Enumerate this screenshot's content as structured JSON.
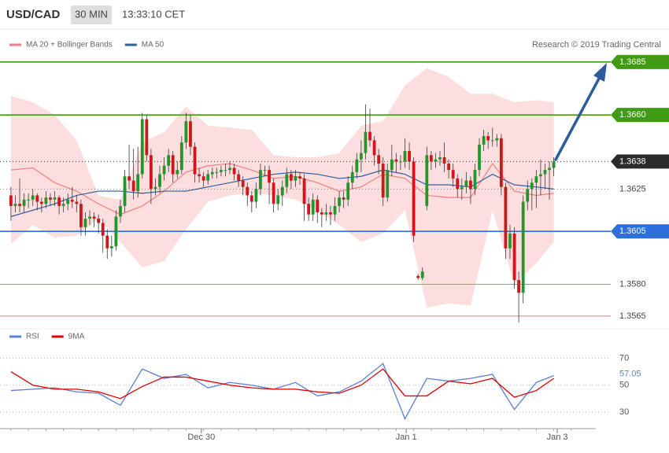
{
  "chart_data": [
    {
      "type": "candlestick",
      "title": "USD/CAD",
      "interval": "30 MIN",
      "time": "13:33:10 CET",
      "credit": "Research © 2019 Trading Central",
      "up_color": "#23962b",
      "down_color": "#d0161b",
      "xlim": [
        -2.5,
        133.6
      ],
      "ylim": [
        1.3562,
        1.3692
      ],
      "ohlc": [
        [
          1.3622,
          1.3626,
          1.361,
          1.3617
        ],
        [
          1.3617,
          1.3622,
          1.3614,
          1.3618
        ],
        [
          1.3618,
          1.363,
          1.3614,
          1.3617
        ],
        [
          1.3617,
          1.3623,
          1.3614,
          1.362
        ],
        [
          1.362,
          1.3623,
          1.3616,
          1.362
        ],
        [
          1.362,
          1.3625,
          1.3617,
          1.3622
        ],
        [
          1.3622,
          1.3623,
          1.3615,
          1.3619
        ],
        [
          1.3619,
          1.3621,
          1.3614,
          1.3618
        ],
        [
          1.3618,
          1.3624,
          1.3616,
          1.3621
        ],
        [
          1.3621,
          1.3623,
          1.3617,
          1.362
        ],
        [
          1.362,
          1.3624,
          1.3617,
          1.3621
        ],
        [
          1.3621,
          1.3622,
          1.3613,
          1.3617
        ],
        [
          1.3617,
          1.3621,
          1.3614,
          1.3618
        ],
        [
          1.3618,
          1.3623,
          1.3615,
          1.362
        ],
        [
          1.362,
          1.3626,
          1.3616,
          1.3619
        ],
        [
          1.3619,
          1.3622,
          1.3614,
          1.3618
        ],
        [
          1.3618,
          1.362,
          1.3603,
          1.3607
        ],
        [
          1.3607,
          1.3614,
          1.3603,
          1.3611
        ],
        [
          1.3611,
          1.3615,
          1.3608,
          1.3612
        ],
        [
          1.3612,
          1.3614,
          1.3607,
          1.3611
        ],
        [
          1.3611,
          1.3613,
          1.3604,
          1.3609
        ],
        [
          1.3609,
          1.3611,
          1.3595,
          1.3603
        ],
        [
          1.3603,
          1.3606,
          1.3592,
          1.3597
        ],
        [
          1.3597,
          1.3603,
          1.3593,
          1.3598
        ],
        [
          1.3598,
          1.3615,
          1.3596,
          1.3612
        ],
        [
          1.3612,
          1.362,
          1.3609,
          1.3617
        ],
        [
          1.3617,
          1.3634,
          1.3614,
          1.3631
        ],
        [
          1.3631,
          1.3646,
          1.3625,
          1.3629
        ],
        [
          1.3629,
          1.3644,
          1.362,
          1.3624
        ],
        [
          1.3624,
          1.3645,
          1.3621,
          1.3632
        ],
        [
          1.3632,
          1.3661,
          1.363,
          1.3658
        ],
        [
          1.3658,
          1.366,
          1.3638,
          1.3641
        ],
        [
          1.3641,
          1.3644,
          1.3618,
          1.3625
        ],
        [
          1.3625,
          1.363,
          1.3622,
          1.3626
        ],
        [
          1.3626,
          1.3636,
          1.3623,
          1.3632
        ],
        [
          1.3632,
          1.364,
          1.3629,
          1.3636
        ],
        [
          1.3636,
          1.3644,
          1.3633,
          1.3641
        ],
        [
          1.3641,
          1.3643,
          1.3628,
          1.3632
        ],
        [
          1.3632,
          1.3638,
          1.363,
          1.3634
        ],
        [
          1.3634,
          1.365,
          1.3632,
          1.3647
        ],
        [
          1.3647,
          1.3661,
          1.3644,
          1.3657
        ],
        [
          1.3657,
          1.366,
          1.3641,
          1.3645
        ],
        [
          1.3645,
          1.3647,
          1.3628,
          1.3632
        ],
        [
          1.3632,
          1.3635,
          1.3628,
          1.3631
        ],
        [
          1.3631,
          1.3633,
          1.3626,
          1.3629
        ],
        [
          1.3629,
          1.3634,
          1.3627,
          1.3632
        ],
        [
          1.3632,
          1.3635,
          1.363,
          1.3633
        ],
        [
          1.3633,
          1.3635,
          1.363,
          1.3633
        ],
        [
          1.3633,
          1.3636,
          1.3631,
          1.3634
        ],
        [
          1.3634,
          1.3637,
          1.3631,
          1.3634
        ],
        [
          1.3634,
          1.3638,
          1.3632,
          1.3635
        ],
        [
          1.3635,
          1.3637,
          1.3629,
          1.3632
        ],
        [
          1.3632,
          1.3634,
          1.3626,
          1.3629
        ],
        [
          1.3629,
          1.3631,
          1.3622,
          1.3626
        ],
        [
          1.3626,
          1.3628,
          1.3617,
          1.3622
        ],
        [
          1.3622,
          1.3624,
          1.3614,
          1.3619
        ],
        [
          1.3619,
          1.3628,
          1.3616,
          1.3625
        ],
        [
          1.3625,
          1.3637,
          1.3622,
          1.3634
        ],
        [
          1.3634,
          1.3636,
          1.3631,
          1.3634
        ],
        [
          1.3634,
          1.3636,
          1.3618,
          1.3628
        ],
        [
          1.3628,
          1.363,
          1.3614,
          1.3618
        ],
        [
          1.3618,
          1.3625,
          1.3615,
          1.3622
        ],
        [
          1.3622,
          1.3629,
          1.3617,
          1.3626
        ],
        [
          1.3626,
          1.3635,
          1.3623,
          1.3632
        ],
        [
          1.3632,
          1.3634,
          1.3625,
          1.3629
        ],
        [
          1.3629,
          1.3634,
          1.3626,
          1.3631
        ],
        [
          1.3631,
          1.3633,
          1.3627,
          1.363
        ],
        [
          1.363,
          1.3632,
          1.361,
          1.3618
        ],
        [
          1.3618,
          1.3621,
          1.361,
          1.3613
        ],
        [
          1.3613,
          1.3623,
          1.361,
          1.362
        ],
        [
          1.362,
          1.3622,
          1.3609,
          1.3614
        ],
        [
          1.3614,
          1.3616,
          1.3607,
          1.3613
        ],
        [
          1.3613,
          1.3618,
          1.361,
          1.3614
        ],
        [
          1.3614,
          1.3617,
          1.3608,
          1.3613
        ],
        [
          1.3613,
          1.3621,
          1.361,
          1.3617
        ],
        [
          1.3617,
          1.3624,
          1.3614,
          1.3621
        ],
        [
          1.3621,
          1.3624,
          1.3616,
          1.362
        ],
        [
          1.362,
          1.3631,
          1.3617,
          1.3628
        ],
        [
          1.3628,
          1.3636,
          1.3625,
          1.3633
        ],
        [
          1.3633,
          1.3642,
          1.363,
          1.3639
        ],
        [
          1.3639,
          1.3648,
          1.3633,
          1.3642
        ],
        [
          1.3642,
          1.3665,
          1.3639,
          1.3652
        ],
        [
          1.3652,
          1.3663,
          1.3645,
          1.3648
        ],
        [
          1.3648,
          1.365,
          1.3636,
          1.3641
        ],
        [
          1.3641,
          1.3644,
          1.3632,
          1.3637
        ],
        [
          1.3637,
          1.364,
          1.3617,
          1.3621
        ],
        [
          1.3621,
          1.3637,
          1.3619,
          1.3634
        ],
        [
          1.3634,
          1.3646,
          1.3631,
          1.3639
        ],
        [
          1.3639,
          1.3642,
          1.3633,
          1.3638
        ],
        [
          1.3638,
          1.3641,
          1.3634,
          1.3638
        ],
        [
          1.3638,
          1.3649,
          1.3635,
          1.3643
        ],
        [
          1.3643,
          1.3647,
          1.3634,
          1.3638
        ],
        [
          1.3638,
          1.364,
          1.36,
          1.3603
        ],
        [
          1.3584,
          1.3585,
          1.3582,
          1.3583
        ],
        [
          1.3583,
          1.3588,
          1.3582,
          1.3586
        ],
        [
          1.3617,
          1.3645,
          1.3615,
          1.3641
        ],
        [
          1.3641,
          1.3643,
          1.3634,
          1.3638
        ],
        [
          1.3638,
          1.3642,
          1.3635,
          1.3639
        ],
        [
          1.3639,
          1.3643,
          1.3636,
          1.364
        ],
        [
          1.364,
          1.3647,
          1.3633,
          1.3637
        ],
        [
          1.3637,
          1.3639,
          1.363,
          1.3634
        ],
        [
          1.3634,
          1.3637,
          1.3626,
          1.363
        ],
        [
          1.363,
          1.3632,
          1.3621,
          1.3625
        ],
        [
          1.3625,
          1.363,
          1.362,
          1.3626
        ],
        [
          1.3626,
          1.3633,
          1.3623,
          1.3629
        ],
        [
          1.3629,
          1.3631,
          1.3618,
          1.3625
        ],
        [
          1.3625,
          1.3637,
          1.3622,
          1.3634
        ],
        [
          1.3634,
          1.3649,
          1.3631,
          1.3646
        ],
        [
          1.3646,
          1.3653,
          1.3643,
          1.365
        ],
        [
          1.365,
          1.3652,
          1.3644,
          1.3648
        ],
        [
          1.3648,
          1.3654,
          1.3645,
          1.3648
        ],
        [
          1.3648,
          1.3651,
          1.3645,
          1.3649
        ],
        [
          1.3649,
          1.3651,
          1.3622,
          1.3626
        ],
        [
          1.3626,
          1.3628,
          1.3592,
          1.3597
        ],
        [
          1.3597,
          1.3608,
          1.3592,
          1.3604
        ],
        [
          1.3604,
          1.3607,
          1.3578,
          1.3582
        ],
        [
          1.3582,
          1.3586,
          1.3562,
          1.3576
        ],
        [
          1.3576,
          1.3622,
          1.3571,
          1.3619
        ],
        [
          1.3619,
          1.3629,
          1.3615,
          1.3625
        ],
        [
          1.3625,
          1.363,
          1.3615,
          1.3628
        ],
        [
          1.3628,
          1.3634,
          1.3616,
          1.3631
        ],
        [
          1.3631,
          1.3639,
          1.3622,
          1.3632
        ],
        [
          1.3632,
          1.3637,
          1.3625,
          1.3634
        ],
        [
          1.3634,
          1.3638,
          1.362,
          1.3635
        ],
        [
          1.3635,
          1.364,
          1.3631,
          1.3638
        ]
      ],
      "x": [
        0,
        5,
        10,
        15,
        20,
        25,
        30,
        35,
        40,
        45,
        50,
        55,
        60,
        65,
        70,
        75,
        80,
        85,
        90,
        95,
        100,
        105,
        110,
        115,
        120,
        124
      ],
      "series": [
        {
          "name": "MA 20 + Bollinger Bands",
          "color": "#f07f7f",
          "band_color": "#fbd3d3",
          "values": [
            1.3634,
            1.3635,
            1.3628,
            1.3624,
            1.3618,
            1.3613,
            1.3617,
            1.3624,
            1.3633,
            1.3636,
            1.3637,
            1.3634,
            1.363,
            1.3631,
            1.3628,
            1.3624,
            1.3626,
            1.3632,
            1.363,
            1.3622,
            1.3621,
            1.3621,
            1.3637,
            1.3624,
            1.3622,
            1.3623
          ],
          "band_upper": [
            1.3669,
            1.3666,
            1.366,
            1.3648,
            1.3622,
            1.362,
            1.3647,
            1.3652,
            1.3664,
            1.3655,
            1.3654,
            1.3653,
            1.3641,
            1.364,
            1.364,
            1.3642,
            1.3655,
            1.3657,
            1.3674,
            1.3682,
            1.3678,
            1.367,
            1.367,
            1.3666,
            1.3667,
            1.3666
          ],
          "band_lower": [
            1.3599,
            1.3608,
            1.3602,
            1.3603,
            1.3611,
            1.36,
            1.3588,
            1.3591,
            1.3606,
            1.3619,
            1.3622,
            1.3623,
            1.3622,
            1.362,
            1.3615,
            1.3608,
            1.36,
            1.3604,
            1.3615,
            1.3569,
            1.3571,
            1.357,
            1.3615,
            1.358,
            1.359,
            1.36
          ]
        },
        {
          "name": "MA 50",
          "color": "#2f5f9f",
          "values": [
            1.3612,
            1.3615,
            1.3618,
            1.3622,
            1.3624,
            1.3624,
            1.3623,
            1.3624,
            1.3624,
            1.3626,
            1.3628,
            1.363,
            1.3632,
            1.3633,
            1.3632,
            1.363,
            1.3631,
            1.3634,
            1.3632,
            1.3627,
            1.3627,
            1.3626,
            1.3632,
            1.3627,
            1.3626,
            1.3625
          ]
        }
      ],
      "levels": [
        {
          "value": 1.3685,
          "label": "1.3685",
          "color": "#3f9a14",
          "style": "solid",
          "box": "#3f9a14",
          "text_color": "#ffffff"
        },
        {
          "value": 1.366,
          "label": "1.3660",
          "color": "#3f9a14",
          "style": "solid",
          "box": "#3f9a14",
          "text_color": "#ffffff"
        },
        {
          "value": 1.3638,
          "label": "1.3638",
          "color": "#333333",
          "style": "dotted",
          "box": "#2b2b2b",
          "text_color": "#ffffff"
        },
        {
          "value": 1.3625,
          "label": "1.3625",
          "color": "#888888",
          "style": "dotted",
          "box": "#ffffff",
          "text_color": "#444444"
        },
        {
          "value": 1.3605,
          "label": "1.3605",
          "color": "#2f6fdc",
          "style": "solid",
          "box": "#2f6fdc",
          "text_color": "#ffffff"
        },
        {
          "value": 1.358,
          "label": "1.3580",
          "color": "#e27a7a",
          "style": "solid",
          "box": "#ffffff",
          "text_color": "#444444"
        },
        {
          "value": 1.3565,
          "label": "1.3565",
          "color": "#e27a7a",
          "style": "solid",
          "box": "#ffffff",
          "text_color": "#444444"
        }
      ]
    },
    {
      "type": "line",
      "xlim": [
        -2.5,
        133.6
      ],
      "ylim": [
        16,
        79
      ],
      "yticks": [
        30,
        50,
        70
      ],
      "grid": true,
      "x": [
        0,
        5,
        10,
        15,
        20,
        25,
        30,
        35,
        40,
        45,
        50,
        55,
        60,
        65,
        70,
        75,
        80,
        85,
        90,
        95,
        100,
        105,
        110,
        115,
        120,
        124
      ],
      "xticks": [
        {
          "value": 43.5,
          "label": "Dec 30"
        },
        {
          "value": 90.3,
          "label": "Jan 1"
        },
        {
          "value": 124.8,
          "label": "Jan 3"
        }
      ],
      "series": [
        {
          "name": "RSI",
          "color": "#5b7fd6",
          "values": [
            46,
            47,
            48,
            45,
            44,
            35,
            62,
            55,
            58,
            48,
            52,
            50,
            47,
            52,
            42,
            45,
            53,
            66,
            25,
            55,
            53,
            55,
            58,
            32,
            52,
            57.05
          ]
        },
        {
          "name": "9MA",
          "color": "#e00000",
          "values": [
            60,
            50,
            47,
            47,
            45,
            40,
            49,
            56,
            56,
            53,
            50,
            48,
            47,
            47,
            45,
            44,
            50,
            62,
            42,
            42,
            53,
            51,
            55,
            41,
            46,
            55
          ]
        }
      ]
    }
  ]
}
